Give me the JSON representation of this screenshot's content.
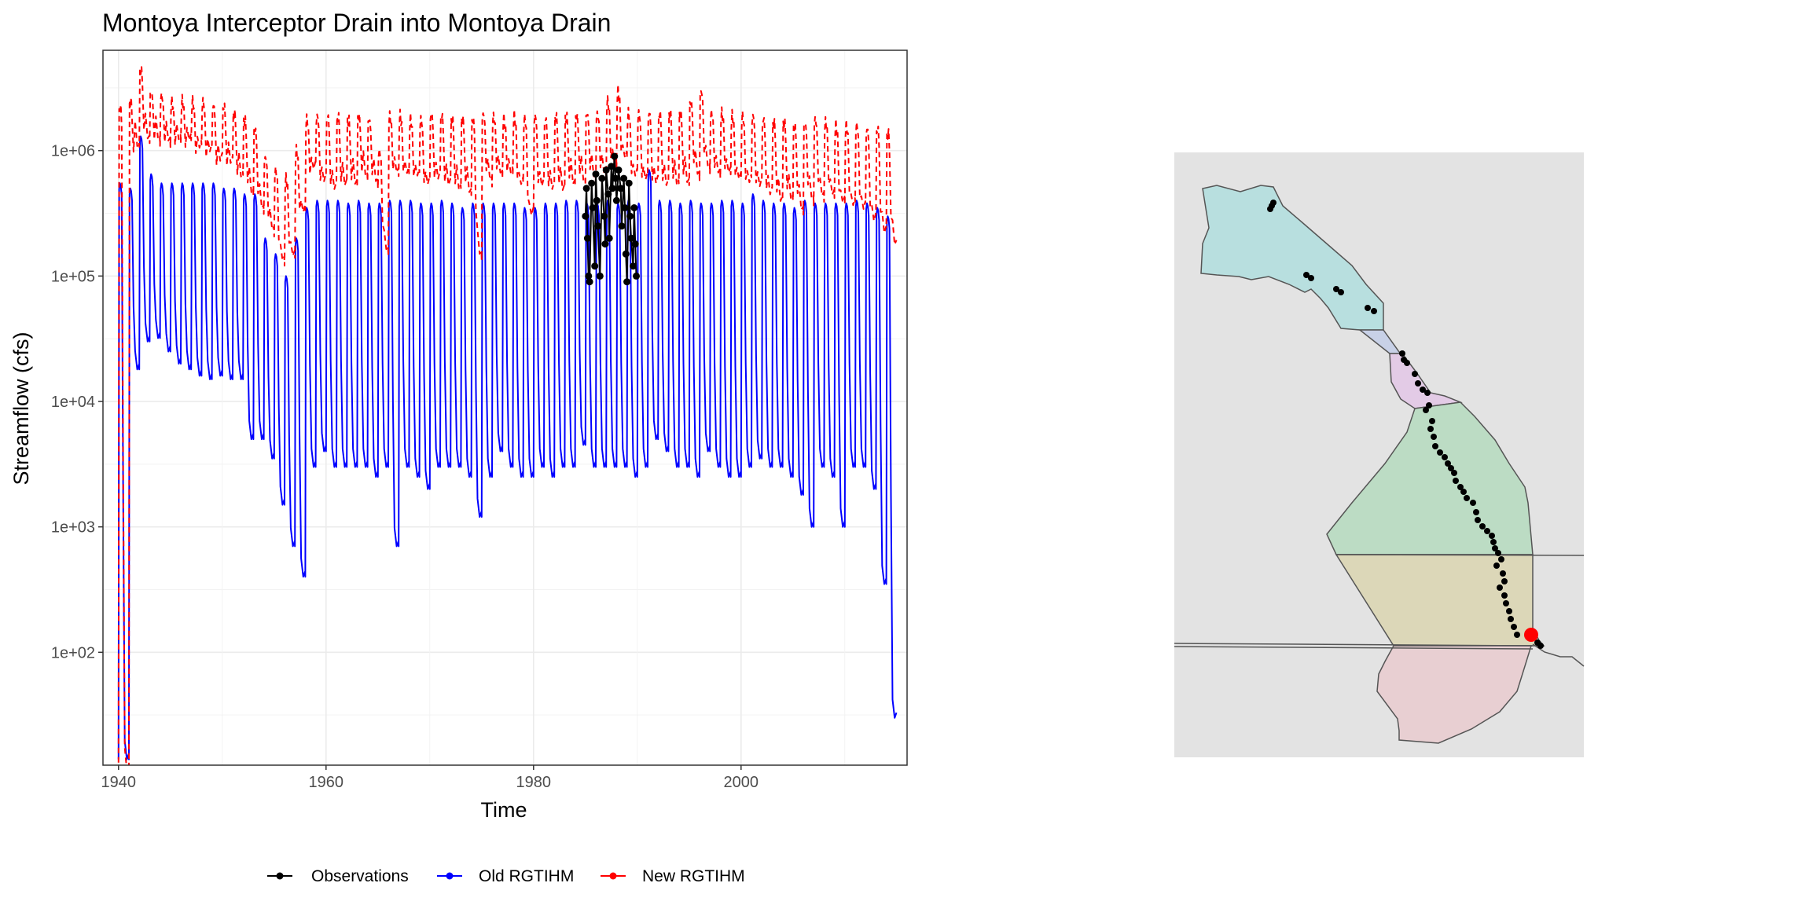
{
  "chart_data": [
    {
      "type": "line",
      "title": "Montoya Interceptor Drain  into Montoya Drain",
      "xlabel": "Time",
      "ylabel": "Streamflow (cfs)",
      "x_scale": "linear",
      "y_scale": "log10",
      "xlim": [
        1938.5,
        2016
      ],
      "ylim": [
        13,
        650000
      ],
      "ylim_log10": [
        1.1,
        6.8
      ],
      "x_ticks": [
        1940,
        1960,
        1980,
        2000
      ],
      "x_tick_labels": [
        "1940",
        "1960",
        "1980",
        "2000"
      ],
      "y_ticks": [
        100,
        1000,
        10000,
        100000,
        1000000
      ],
      "y_tick_labels": [
        "1e+02",
        "1e+03",
        "1e+04",
        "1e+05",
        "1e+06"
      ],
      "grid": true,
      "legend_position": "bottom",
      "legend": [
        "Observations",
        "Old RGTIHM",
        "New RGTIHM"
      ],
      "series": [
        {
          "name": "Observations",
          "style": "points",
          "color": "#000000",
          "points": [
            [
              1985.0,
              300000
            ],
            [
              1985.1,
              500000
            ],
            [
              1985.2,
              200000
            ],
            [
              1985.3,
              100000
            ],
            [
              1985.4,
              90000
            ],
            [
              1985.6,
              550000
            ],
            [
              1985.7,
              350000
            ],
            [
              1985.9,
              120000
            ],
            [
              1986.0,
              650000
            ],
            [
              1986.1,
              400000
            ],
            [
              1986.2,
              250000
            ],
            [
              1986.4,
              100000
            ],
            [
              1986.6,
              600000
            ],
            [
              1986.8,
              300000
            ],
            [
              1986.9,
              180000
            ],
            [
              1987.0,
              700000
            ],
            [
              1987.2,
              450000
            ],
            [
              1987.3,
              200000
            ],
            [
              1987.5,
              750000
            ],
            [
              1987.6,
              500000
            ],
            [
              1987.8,
              900000
            ],
            [
              1987.9,
              600000
            ],
            [
              1988.0,
              400000
            ],
            [
              1988.2,
              700000
            ],
            [
              1988.4,
              500000
            ],
            [
              1988.5,
              250000
            ],
            [
              1988.7,
              600000
            ],
            [
              1988.8,
              350000
            ],
            [
              1988.9,
              150000
            ],
            [
              1989.0,
              90000
            ],
            [
              1989.2,
              550000
            ],
            [
              1989.3,
              300000
            ],
            [
              1989.4,
              200000
            ],
            [
              1989.6,
              120000
            ],
            [
              1989.7,
              350000
            ],
            [
              1989.8,
              180000
            ],
            [
              1989.9,
              100000
            ]
          ]
        },
        {
          "name": "Old RGTIHM",
          "style": "solid",
          "color": "#0000ff",
          "start_year": 1940.0,
          "end_year": 2015.0,
          "period_years": 1.0,
          "annual_peak": [
            550000,
            500000,
            1300000,
            650000,
            550000,
            550000,
            550000,
            550000,
            550000,
            550000,
            500000,
            500000,
            450000,
            450000,
            200000,
            150000,
            100000,
            200000,
            350000,
            400000,
            400000,
            400000,
            380000,
            400000,
            380000,
            380000,
            400000,
            400000,
            400000,
            380000,
            380000,
            400000,
            380000,
            350000,
            380000,
            380000,
            380000,
            380000,
            380000,
            350000,
            350000,
            380000,
            380000,
            400000,
            400000,
            380000,
            380000,
            400000,
            380000,
            400000,
            380000,
            700000,
            400000,
            400000,
            380000,
            400000,
            380000,
            380000,
            400000,
            400000,
            380000,
            450000,
            400000,
            380000,
            380000,
            350000,
            400000,
            380000,
            380000,
            380000,
            380000,
            400000,
            380000,
            350000,
            300000
          ],
          "annual_trough": [
            14,
            18000,
            30000,
            32000,
            25000,
            20000,
            18000,
            16000,
            15000,
            16000,
            15000,
            15000,
            5000,
            5000,
            3500,
            1500,
            700,
            400,
            3000,
            4000,
            3000,
            3000,
            3000,
            3000,
            2500,
            3000,
            700,
            3000,
            2500,
            2000,
            3000,
            3000,
            3000,
            2500,
            1200,
            2500,
            4000,
            3000,
            2500,
            2500,
            3000,
            2500,
            3000,
            3000,
            4500,
            3000,
            3000,
            3000,
            3000,
            2500,
            3000,
            5000,
            4000,
            3000,
            3000,
            2500,
            4000,
            3000,
            2500,
            2500,
            3000,
            3500,
            3000,
            3000,
            2500,
            1800,
            1000,
            3000,
            2500,
            1000,
            3000,
            3000,
            2000,
            350,
            30
          ]
        },
        {
          "name": "New RGTIHM",
          "style": "dashed",
          "color": "#ff0000",
          "start_year": 1940.0,
          "end_year": 2015.0,
          "period_years": 1.0,
          "annual_peak": [
            2200000,
            2500000,
            4500000,
            3000000,
            2800000,
            2500000,
            2500000,
            2500000,
            2500000,
            2300000,
            2300000,
            2000000,
            1800000,
            1500000,
            900000,
            700000,
            600000,
            1000000,
            1800000,
            1900000,
            1900000,
            1900000,
            1800000,
            1900000,
            1800000,
            1000000,
            1900000,
            1900000,
            1800000,
            1800000,
            2000000,
            1900000,
            1800000,
            1800000,
            1800000,
            2000000,
            1900000,
            1800000,
            1900000,
            1800000,
            1900000,
            1800000,
            1900000,
            1900000,
            1900000,
            2000000,
            2000000,
            2500000,
            3000000,
            2000000,
            2000000,
            2000000,
            2000000,
            2000000,
            2000000,
            2500000,
            3000000,
            2000000,
            2000000,
            1900000,
            1900000,
            1900000,
            1800000,
            1700000,
            1700000,
            1600000,
            1700000,
            1800000,
            1700000,
            1600000,
            1600000,
            1600000,
            1500000,
            1500000,
            1400000
          ],
          "annual_trough": [
            13,
            1200000,
            1300000,
            1200000,
            1100000,
            1100000,
            1100000,
            1000000,
            1000000,
            900000,
            900000,
            700000,
            500000,
            350000,
            220000,
            120000,
            130000,
            300000,
            700000,
            600000,
            550000,
            600000,
            600000,
            650000,
            550000,
            150000,
            600000,
            600000,
            600000,
            550000,
            650000,
            600000,
            550000,
            500000,
            150000,
            550000,
            600000,
            600000,
            500000,
            300000,
            550000,
            550000,
            550000,
            600000,
            600000,
            600000,
            600000,
            700000,
            800000,
            600000,
            600000,
            600000,
            600000,
            600000,
            600000,
            650000,
            700000,
            600000,
            600000,
            550000,
            550000,
            550000,
            500000,
            450000,
            450000,
            350000,
            400000,
            400000,
            400000,
            350000,
            350000,
            350000,
            300000,
            250000,
            200000
          ]
        }
      ]
    },
    {
      "type": "map",
      "title": "",
      "background_color": "#e3e3e3",
      "regions": [
        {
          "fill": "#b8dfdf"
        },
        {
          "fill": "#c8d1e7"
        },
        {
          "fill": "#e3cbe6"
        },
        {
          "fill": "#bcdcc4"
        },
        {
          "fill": "#dcd7b8"
        },
        {
          "fill": "#e8cfd2"
        }
      ],
      "observation_points_color": "#000000",
      "highlight_point_color": "#ff0000"
    }
  ]
}
